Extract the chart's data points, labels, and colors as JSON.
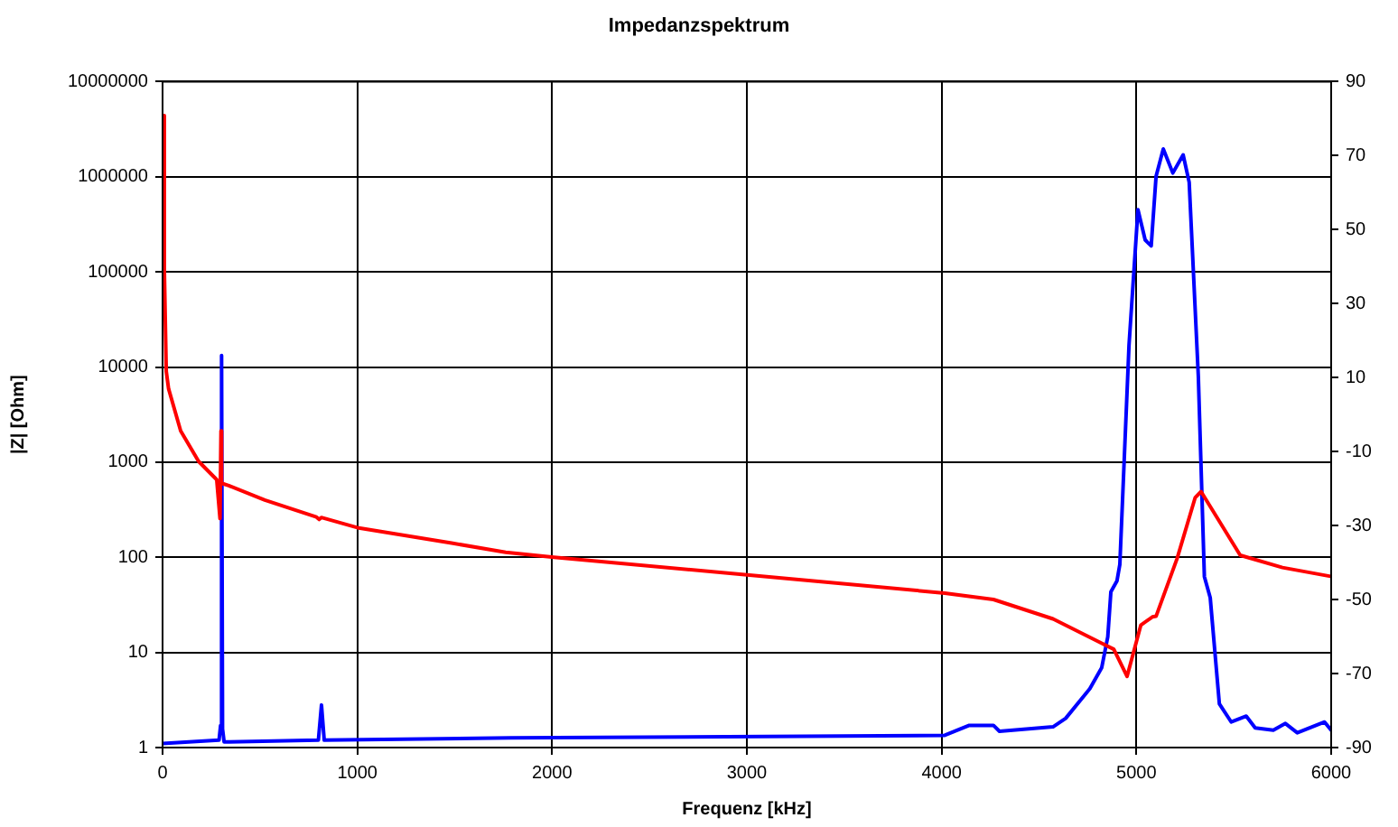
{
  "chart_data": {
    "type": "line",
    "title": "Impedanzspektrum",
    "xlabel": "Frequenz [kHz]",
    "ylabel": "|Z| [Ohm]",
    "xlim": [
      0,
      6000
    ],
    "xticks": [
      0,
      1000,
      2000,
      3000,
      4000,
      5000,
      6000
    ],
    "ylim": [
      1,
      10000000
    ],
    "yticks": [
      1,
      10,
      100,
      1000,
      10000,
      100000,
      1000000,
      10000000
    ],
    "log": "y",
    "y2lim": [
      -90,
      90
    ],
    "y2ticks": [
      -90,
      -70,
      -50,
      -30,
      -10,
      10,
      30,
      50,
      70,
      90
    ],
    "grid": true,
    "legend": false,
    "marker": "none",
    "line_style": "solid",
    "series": [
      {
        "color": "#ff0000",
        "x": [
          0,
          9,
          19,
          31,
          93,
          185,
          278,
          295,
          300,
          303,
          340,
          525,
          790,
          804,
          815,
          1000,
          1484,
          1762,
          2010,
          3014,
          4016,
          4266,
          4572,
          4822,
          4884,
          4952,
          5023,
          5082,
          5101,
          5209,
          5302,
          5332,
          5409,
          5533,
          5750,
          5997
        ],
        "values": [
          4400000,
          110000,
          9000,
          5900,
          2130,
          1020,
          655,
          256,
          2133,
          600,
          566,
          400,
          265,
          250,
          262,
          205,
          141,
          113,
          100,
          65,
          42,
          36,
          22.5,
          12.5,
          10.8,
          5.6,
          19.4,
          23.6,
          24,
          97,
          425,
          490,
          272,
          105,
          78,
          63
        ]
      },
      {
        "color": "#0000ff",
        "axis": "y2",
        "x": [
          0,
          290,
          298,
          303,
          308,
          316,
          800,
          816,
          830,
          1790,
          4016,
          4142,
          4266,
          4297,
          4572,
          4637,
          4761,
          4822,
          4853,
          4869,
          4900,
          4915,
          4962,
          5008,
          5045,
          5076,
          5101,
          5138,
          5187,
          5240,
          5271,
          5318,
          5349,
          5379,
          5426,
          5487,
          5564,
          5610,
          5703,
          5765,
          5826,
          5966,
          6000
        ],
        "values": [
          -88.9,
          -88,
          -84,
          16,
          -85,
          -88.5,
          -88,
          -78.5,
          -88,
          -87.4,
          -86.7,
          -84,
          -84,
          -85.6,
          -84.4,
          -82.1,
          -74.1,
          -68.4,
          -60.1,
          -47.9,
          -45,
          -40.5,
          18.7,
          55.4,
          47.2,
          45.6,
          64.4,
          71.8,
          65.3,
          70.2,
          62.8,
          10.3,
          -43.8,
          -49.5,
          -78.2,
          -83.1,
          -81.5,
          -84.7,
          -85.3,
          -83.5,
          -86,
          -83.1,
          -85.3
        ]
      }
    ]
  }
}
